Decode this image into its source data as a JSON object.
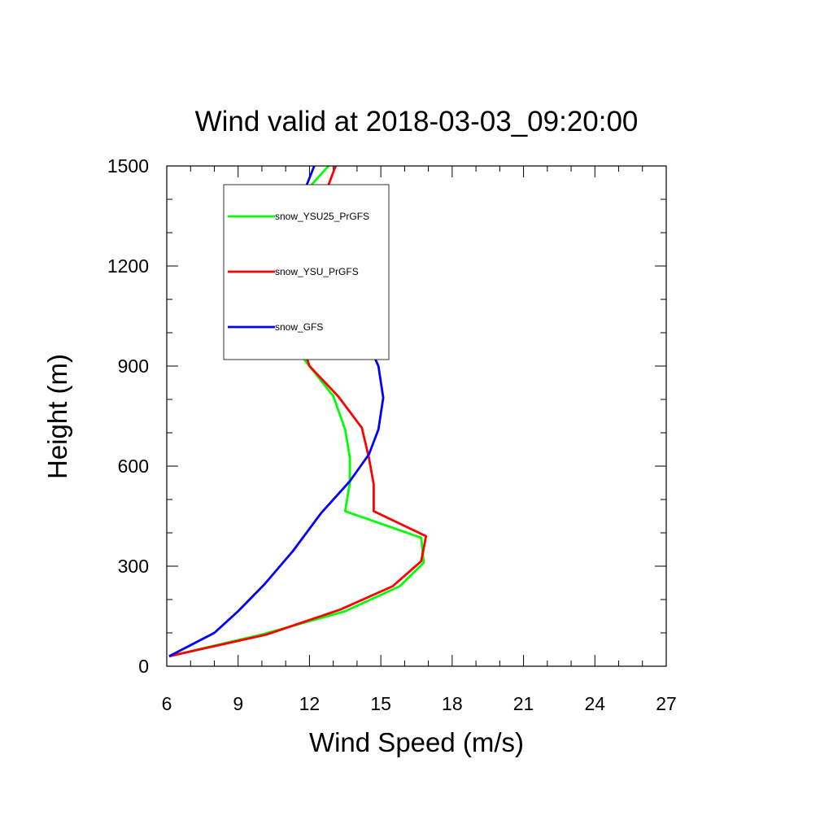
{
  "chart_data": {
    "type": "line",
    "title": "Wind valid at 2018-03-03_09:20:00",
    "xlabel": "Wind Speed (m/s)",
    "ylabel": "Height (m)",
    "xlim": [
      6,
      27
    ],
    "ylim": [
      0,
      1500
    ],
    "xticks": [
      "6",
      "9",
      "12",
      "15",
      "18",
      "21",
      "24",
      "27"
    ],
    "yticks": [
      "0",
      "300",
      "600",
      "900",
      "1200",
      "1500"
    ],
    "grid": false,
    "legend_position": "top-left",
    "series": [
      {
        "name": "snow_YSU25_PrGFS",
        "color": "#00ff00",
        "x": [
          6.1,
          10.0,
          13.5,
          15.8,
          16.8,
          16.7,
          13.5,
          13.7,
          13.7,
          13.5,
          13.0,
          12.0,
          11.0,
          10.5,
          10.3,
          10.6,
          11.0,
          11.6,
          12.8
        ],
        "y": [
          30,
          95,
          165,
          240,
          310,
          385,
          465,
          550,
          625,
          710,
          810,
          900,
          990,
          1085,
          1195,
          1295,
          1350,
          1405,
          1500
        ]
      },
      {
        "name": "snow_YSU_PrGFS",
        "color": "#ff0000",
        "x": [
          6.1,
          10.2,
          13.3,
          15.5,
          16.7,
          16.9,
          14.7,
          14.7,
          14.5,
          14.2,
          13.2,
          12.0,
          11.6,
          11.2,
          11.0,
          11.5,
          12.2,
          12.6,
          13.1
        ],
        "y": [
          30,
          95,
          170,
          240,
          315,
          390,
          465,
          545,
          625,
          715,
          810,
          900,
          990,
          1085,
          1195,
          1290,
          1350,
          1405,
          1500
        ]
      },
      {
        "name": "snow_GFS",
        "color": "#0000ff",
        "x": [
          6.1,
          8.0,
          9.0,
          10.1,
          11.3,
          12.5,
          13.7,
          14.5,
          14.9,
          15.1,
          14.9,
          14.3,
          13.4,
          12.3,
          11.5,
          11.5,
          11.7,
          12.2
        ],
        "y": [
          30,
          100,
          165,
          245,
          345,
          460,
          555,
          635,
          710,
          805,
          900,
          995,
          1090,
          1180,
          1290,
          1350,
          1410,
          1500
        ]
      }
    ]
  }
}
